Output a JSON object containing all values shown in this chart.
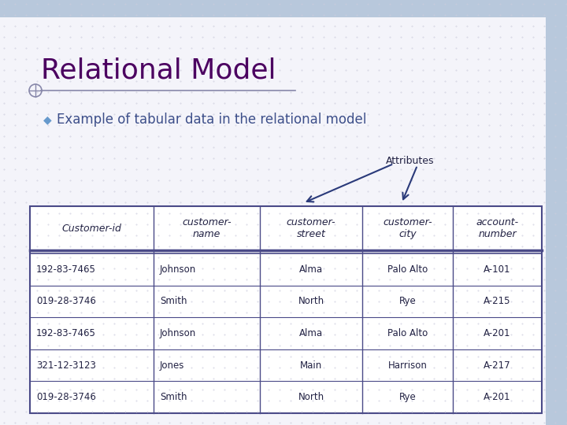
{
  "title": "Relational Model",
  "title_color": "#4B0060",
  "bullet_text": "Example of tabular data in the relational model",
  "bullet_color": "#3D4F8A",
  "background_color": "#F4F4FA",
  "top_bar_color": "#B8C8DC",
  "right_bar_color": "#B8C8DC",
  "attributes_label": "Attributes",
  "col_headers": [
    "Customer-id",
    "customer-\nname",
    "customer-\nstreet",
    "customer-\ncity",
    "account-\nnumber"
  ],
  "rows": [
    [
      "192-83-7465",
      "Johnson",
      "Alma",
      "Palo Alto",
      "A-101"
    ],
    [
      "019-28-3746",
      "Smith",
      "North",
      "Rye",
      "A-215"
    ],
    [
      "192-83-7465",
      "Johnson",
      "Alma",
      "Palo Alto",
      "A-201"
    ],
    [
      "321-12-3123",
      "Jones",
      "Main",
      "Harrison",
      "A-217"
    ],
    [
      "019-28-3746",
      "Smith",
      "North",
      "Rye",
      "A-201"
    ]
  ],
  "table_text_color": "#222244",
  "arrow_color": "#2A3A7A",
  "table_border_color": "#4A4A88",
  "line_color": "#8888AA",
  "bullet_diamond_color": "#6699CC"
}
